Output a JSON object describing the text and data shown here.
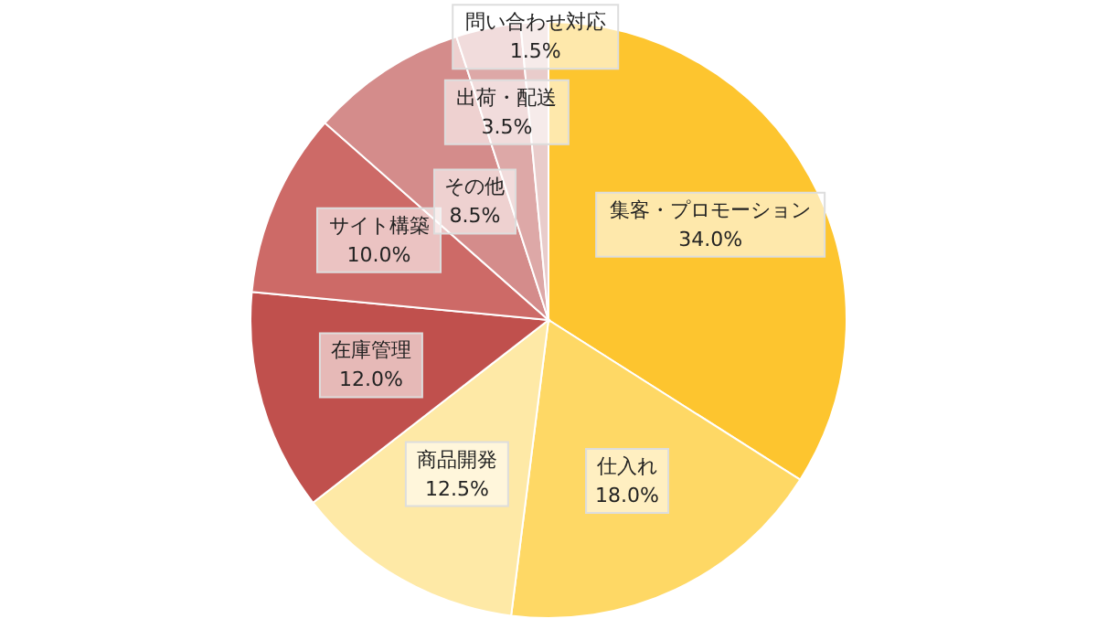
{
  "chart_data": {
    "type": "pie",
    "categories": [
      "集客・プロモーション",
      "仕入れ",
      "商品開発",
      "在庫管理",
      "サイト構築",
      "その他",
      "出荷・配送",
      "問い合わせ対応"
    ],
    "values": [
      34.0,
      18.0,
      12.5,
      12.0,
      10.0,
      8.5,
      3.5,
      1.5
    ],
    "colors": [
      "#fdc52f",
      "#fed865",
      "#fee9a6",
      "#c0504d",
      "#cd6a67",
      "#d48c8b",
      "#dda8a7",
      "#e9cccb"
    ],
    "value_labels": [
      "34.0%",
      "18.0%",
      "12.5%",
      "12.0%",
      "10.0%",
      "8.5%",
      "3.5%",
      "1.5%"
    ]
  }
}
